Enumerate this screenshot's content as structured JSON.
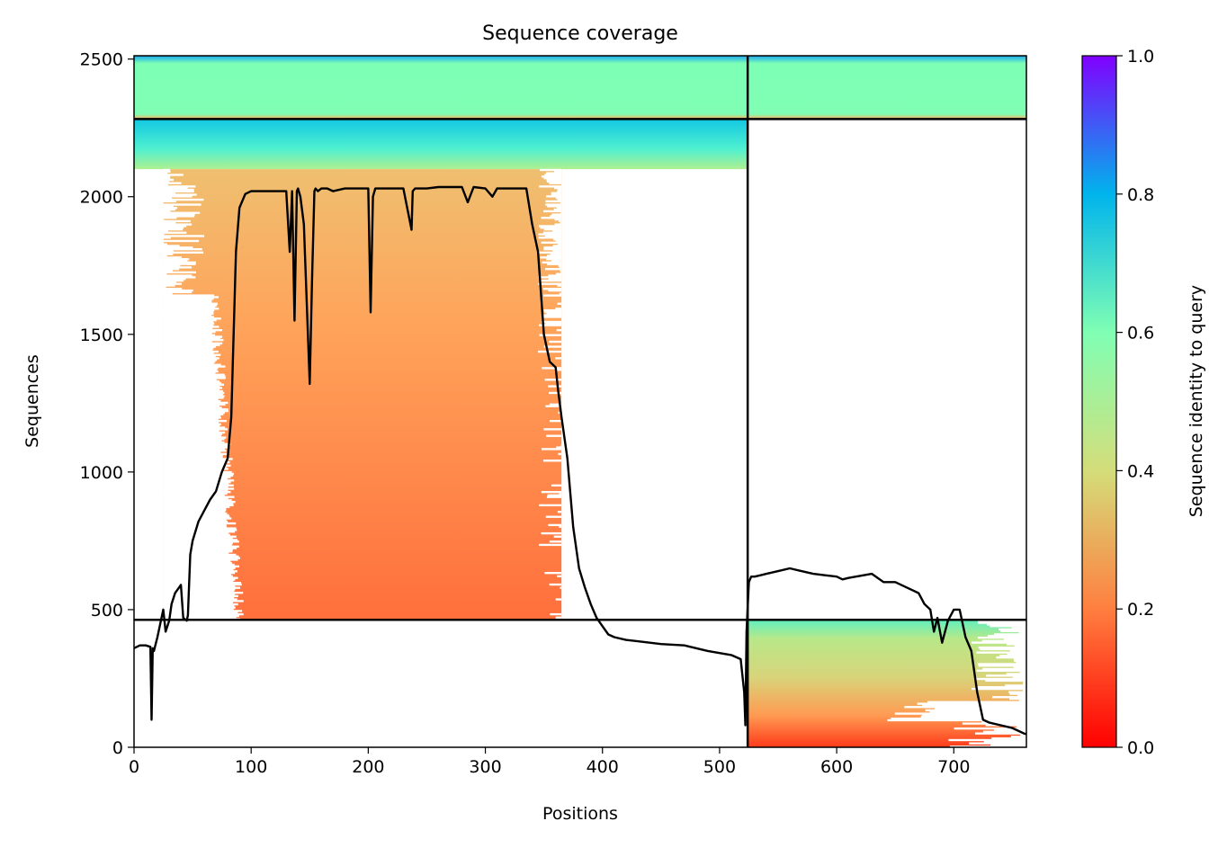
{
  "chart_data": {
    "type": "heatmap",
    "title": "Sequence coverage",
    "xlabel": "Positions",
    "ylabel": "Sequences",
    "xlim": [
      0,
      762
    ],
    "ylim": [
      0,
      2512
    ],
    "xticks": [
      0,
      100,
      200,
      300,
      400,
      500,
      600,
      700
    ],
    "yticks": [
      0,
      500,
      1000,
      1500,
      2000,
      2500
    ],
    "grid": false,
    "colorbar": {
      "label": "Sequence identity to query",
      "range": [
        0,
        1
      ],
      "ticks": [
        "0.0",
        "0.2",
        "0.4",
        "0.6",
        "0.8",
        "1.0"
      ],
      "colormap": "rainbow_r",
      "stops": [
        "#ff0000",
        "#ff7f40",
        "#d4dd7a",
        "#80ffb4",
        "#00b4ec",
        "#8000ff"
      ]
    },
    "domain_boundaries": {
      "vertical_x": [
        524
      ],
      "horizontal_y": [
        2282,
        463
      ]
    },
    "msa_blocks": [
      {
        "x_range": [
          0,
          524
        ],
        "y_range": [
          2282,
          2512
        ],
        "identity": 0.55
      },
      {
        "x_range": [
          524,
          762
        ],
        "y_range": [
          2282,
          2512
        ],
        "identity": 0.5
      },
      {
        "x_range": [
          0,
          524
        ],
        "y_range": [
          2100,
          2282
        ],
        "identity": 0.65
      },
      {
        "x_range": [
          25,
          365
        ],
        "y_range": [
          463,
          2100
        ],
        "identity": 0.22
      },
      {
        "x_range": [
          524,
          762
        ],
        "y_range": [
          0,
          463
        ],
        "identity": 0.3
      }
    ],
    "series": [
      {
        "type": "line",
        "color": "#000000",
        "x": [
          0,
          5,
          10,
          14,
          15,
          16,
          17,
          20,
          25,
          27,
          30,
          32,
          35,
          40,
          42,
          45,
          46,
          48,
          50,
          55,
          60,
          65,
          70,
          75,
          80,
          83,
          85,
          87,
          90,
          95,
          100,
          110,
          120,
          130,
          133,
          135,
          137,
          139,
          140,
          142,
          145,
          150,
          152,
          154,
          155,
          157,
          160,
          165,
          170,
          180,
          190,
          200,
          202,
          204,
          206,
          210,
          220,
          230,
          237,
          238,
          240,
          250,
          260,
          280,
          285,
          290,
          300,
          306,
          310,
          330,
          335,
          340,
          345,
          350,
          355,
          360,
          362,
          365,
          370,
          375,
          380,
          385,
          390,
          395,
          400,
          405,
          410,
          420,
          430,
          450,
          470,
          490,
          510,
          518,
          521,
          522,
          523,
          525,
          527,
          530,
          535,
          540,
          550,
          560,
          570,
          580,
          590,
          600,
          605,
          610,
          630,
          640,
          650,
          660,
          670,
          675,
          680,
          683,
          686,
          690,
          695,
          700,
          705,
          710,
          715,
          720,
          725,
          730,
          740,
          750,
          755,
          760,
          762
        ],
        "y": [
          360,
          370,
          370,
          365,
          100,
          360,
          350,
          400,
          500,
          420,
          460,
          520,
          560,
          590,
          470,
          460,
          480,
          700,
          750,
          820,
          860,
          900,
          930,
          1000,
          1050,
          1200,
          1500,
          1800,
          1960,
          2010,
          2020,
          2020,
          2020,
          2020,
          1800,
          2020,
          1550,
          2020,
          2030,
          2000,
          1900,
          1320,
          1700,
          2020,
          2030,
          2020,
          2030,
          2030,
          2020,
          2030,
          2030,
          2030,
          1580,
          2000,
          2030,
          2030,
          2030,
          2030,
          1880,
          2020,
          2030,
          2030,
          2035,
          2035,
          1980,
          2035,
          2030,
          2000,
          2030,
          2030,
          2030,
          1900,
          1800,
          1500,
          1400,
          1380,
          1300,
          1200,
          1050,
          800,
          650,
          580,
          520,
          470,
          440,
          410,
          400,
          390,
          385,
          375,
          370,
          350,
          335,
          320,
          200,
          80,
          420,
          600,
          620,
          620,
          625,
          630,
          640,
          650,
          640,
          630,
          625,
          620,
          610,
          615,
          630,
          600,
          600,
          580,
          560,
          520,
          500,
          420,
          470,
          380,
          460,
          500,
          500,
          400,
          350,
          200,
          100,
          90,
          80,
          70,
          60,
          50,
          48
        ]
      }
    ]
  }
}
